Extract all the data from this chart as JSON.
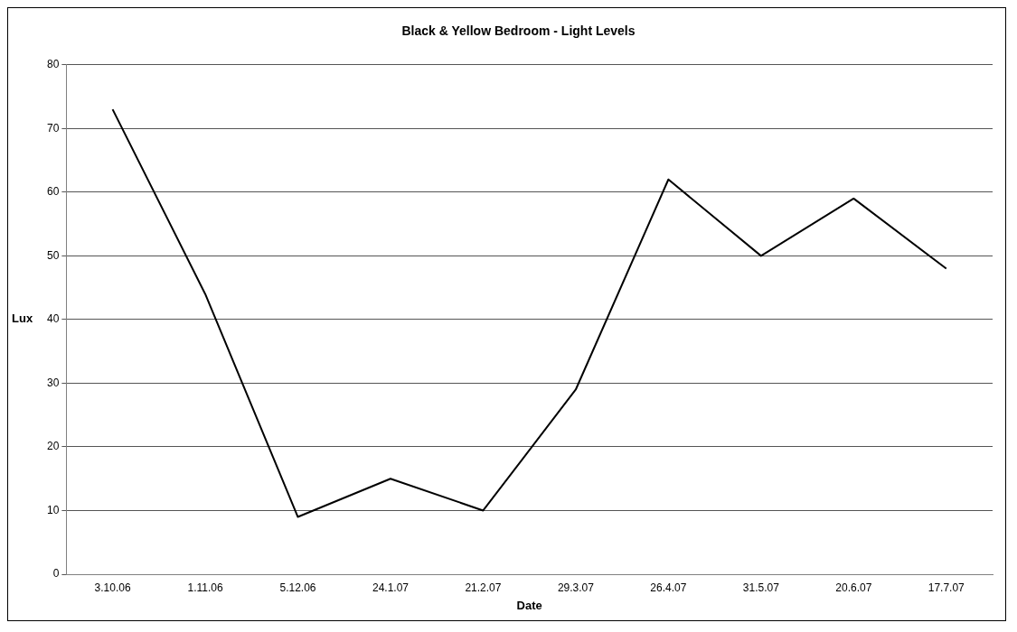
{
  "chart_data": {
    "type": "line",
    "title": "Black & Yellow Bedroom - Light Levels",
    "xlabel": "Date",
    "ylabel": "Lux",
    "categories": [
      "3.10.06",
      "1.11.06",
      "5.12.06",
      "24.1.07",
      "21.2.07",
      "29.3.07",
      "26.4.07",
      "31.5.07",
      "20.6.07",
      "17.7.07"
    ],
    "series": [
      {
        "color": "#000000",
        "values": [
          73,
          44,
          9,
          15,
          10,
          29,
          62,
          50,
          59,
          48
        ]
      }
    ],
    "ylim": [
      0,
      80
    ],
    "yticks": [
      0,
      10,
      20,
      30,
      40,
      50,
      60,
      70,
      80
    ],
    "grid": "y",
    "legend": false,
    "marker": "none",
    "line_style": "solid"
  }
}
